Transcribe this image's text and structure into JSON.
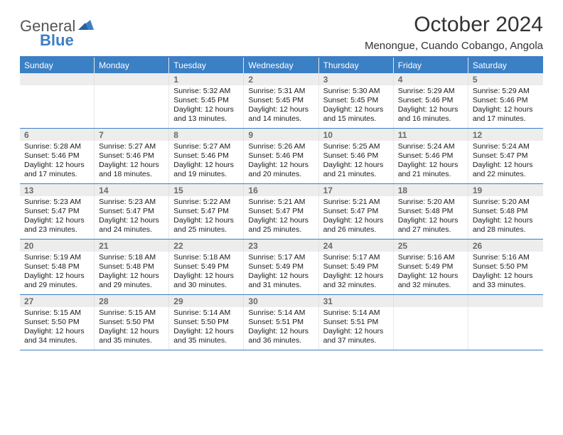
{
  "logo": {
    "general": "General",
    "blue": "Blue"
  },
  "title": "October 2024",
  "location": "Menongue, Cuando Cobango, Angola",
  "colors": {
    "accent": "#3b7fc4",
    "daynum_bg": "#ededed",
    "daynum_text": "#6b6b6b",
    "border_light": "#e8e8e8",
    "text": "#1a1a1a"
  },
  "font": {
    "family": "Arial",
    "cell_size_pt": 8,
    "header_size_pt": 9,
    "title_size_pt": 22
  },
  "dayNames": [
    "Sunday",
    "Monday",
    "Tuesday",
    "Wednesday",
    "Thursday",
    "Friday",
    "Saturday"
  ],
  "weeks": [
    [
      null,
      null,
      {
        "n": "1",
        "sunrise": "5:32 AM",
        "sunset": "5:45 PM",
        "dl_h": 12,
        "dl_m": 13
      },
      {
        "n": "2",
        "sunrise": "5:31 AM",
        "sunset": "5:45 PM",
        "dl_h": 12,
        "dl_m": 14
      },
      {
        "n": "3",
        "sunrise": "5:30 AM",
        "sunset": "5:45 PM",
        "dl_h": 12,
        "dl_m": 15
      },
      {
        "n": "4",
        "sunrise": "5:29 AM",
        "sunset": "5:46 PM",
        "dl_h": 12,
        "dl_m": 16
      },
      {
        "n": "5",
        "sunrise": "5:29 AM",
        "sunset": "5:46 PM",
        "dl_h": 12,
        "dl_m": 17
      }
    ],
    [
      {
        "n": "6",
        "sunrise": "5:28 AM",
        "sunset": "5:46 PM",
        "dl_h": 12,
        "dl_m": 17
      },
      {
        "n": "7",
        "sunrise": "5:27 AM",
        "sunset": "5:46 PM",
        "dl_h": 12,
        "dl_m": 18
      },
      {
        "n": "8",
        "sunrise": "5:27 AM",
        "sunset": "5:46 PM",
        "dl_h": 12,
        "dl_m": 19
      },
      {
        "n": "9",
        "sunrise": "5:26 AM",
        "sunset": "5:46 PM",
        "dl_h": 12,
        "dl_m": 20
      },
      {
        "n": "10",
        "sunrise": "5:25 AM",
        "sunset": "5:46 PM",
        "dl_h": 12,
        "dl_m": 21
      },
      {
        "n": "11",
        "sunrise": "5:24 AM",
        "sunset": "5:46 PM",
        "dl_h": 12,
        "dl_m": 21
      },
      {
        "n": "12",
        "sunrise": "5:24 AM",
        "sunset": "5:47 PM",
        "dl_h": 12,
        "dl_m": 22
      }
    ],
    [
      {
        "n": "13",
        "sunrise": "5:23 AM",
        "sunset": "5:47 PM",
        "dl_h": 12,
        "dl_m": 23
      },
      {
        "n": "14",
        "sunrise": "5:23 AM",
        "sunset": "5:47 PM",
        "dl_h": 12,
        "dl_m": 24
      },
      {
        "n": "15",
        "sunrise": "5:22 AM",
        "sunset": "5:47 PM",
        "dl_h": 12,
        "dl_m": 25
      },
      {
        "n": "16",
        "sunrise": "5:21 AM",
        "sunset": "5:47 PM",
        "dl_h": 12,
        "dl_m": 25
      },
      {
        "n": "17",
        "sunrise": "5:21 AM",
        "sunset": "5:47 PM",
        "dl_h": 12,
        "dl_m": 26
      },
      {
        "n": "18",
        "sunrise": "5:20 AM",
        "sunset": "5:48 PM",
        "dl_h": 12,
        "dl_m": 27
      },
      {
        "n": "19",
        "sunrise": "5:20 AM",
        "sunset": "5:48 PM",
        "dl_h": 12,
        "dl_m": 28
      }
    ],
    [
      {
        "n": "20",
        "sunrise": "5:19 AM",
        "sunset": "5:48 PM",
        "dl_h": 12,
        "dl_m": 29
      },
      {
        "n": "21",
        "sunrise": "5:18 AM",
        "sunset": "5:48 PM",
        "dl_h": 12,
        "dl_m": 29
      },
      {
        "n": "22",
        "sunrise": "5:18 AM",
        "sunset": "5:49 PM",
        "dl_h": 12,
        "dl_m": 30
      },
      {
        "n": "23",
        "sunrise": "5:17 AM",
        "sunset": "5:49 PM",
        "dl_h": 12,
        "dl_m": 31
      },
      {
        "n": "24",
        "sunrise": "5:17 AM",
        "sunset": "5:49 PM",
        "dl_h": 12,
        "dl_m": 32
      },
      {
        "n": "25",
        "sunrise": "5:16 AM",
        "sunset": "5:49 PM",
        "dl_h": 12,
        "dl_m": 32
      },
      {
        "n": "26",
        "sunrise": "5:16 AM",
        "sunset": "5:50 PM",
        "dl_h": 12,
        "dl_m": 33
      }
    ],
    [
      {
        "n": "27",
        "sunrise": "5:15 AM",
        "sunset": "5:50 PM",
        "dl_h": 12,
        "dl_m": 34
      },
      {
        "n": "28",
        "sunrise": "5:15 AM",
        "sunset": "5:50 PM",
        "dl_h": 12,
        "dl_m": 35
      },
      {
        "n": "29",
        "sunrise": "5:14 AM",
        "sunset": "5:50 PM",
        "dl_h": 12,
        "dl_m": 35
      },
      {
        "n": "30",
        "sunrise": "5:14 AM",
        "sunset": "5:51 PM",
        "dl_h": 12,
        "dl_m": 36
      },
      {
        "n": "31",
        "sunrise": "5:14 AM",
        "sunset": "5:51 PM",
        "dl_h": 12,
        "dl_m": 37
      },
      null,
      null
    ]
  ],
  "labels": {
    "sunrise": "Sunrise:",
    "sunset": "Sunset:",
    "daylight": "Daylight:",
    "hours": "hours",
    "and": "and",
    "minutes": "minutes."
  }
}
